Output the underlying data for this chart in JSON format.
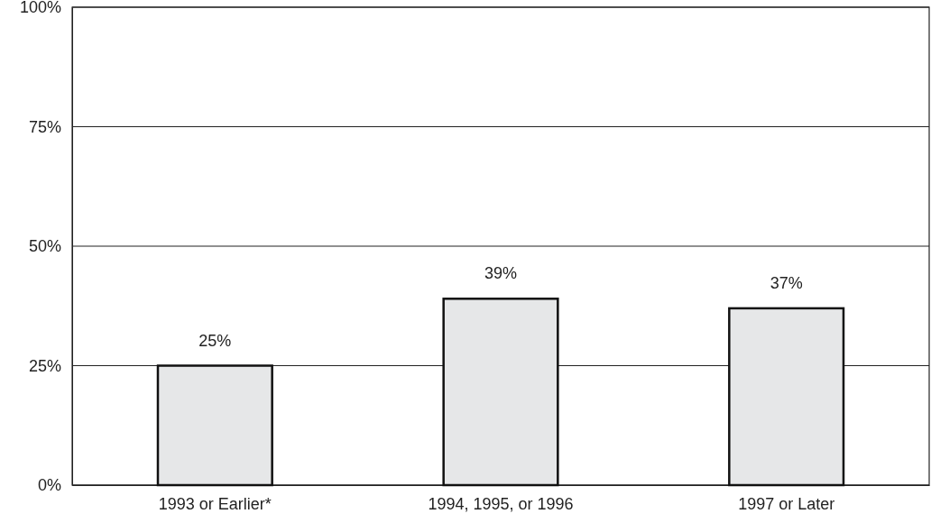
{
  "chart_data": {
    "type": "bar",
    "categories": [
      "1993 or Earlier*",
      "1994, 1995, or 1996",
      "1997 or Later"
    ],
    "values": [
      25,
      39,
      37
    ],
    "color": "#e6e7e8",
    "ylim": [
      0,
      100
    ],
    "yticks": [
      {
        "value": 0,
        "label": "0%"
      },
      {
        "value": 25,
        "label": "25%"
      },
      {
        "value": 50,
        "label": "50%"
      },
      {
        "value": 75,
        "label": "75%"
      },
      {
        "value": 100,
        "label": "100%"
      }
    ],
    "grid": "y",
    "value_labels": [
      "25%",
      "39%",
      "37%"
    ]
  }
}
